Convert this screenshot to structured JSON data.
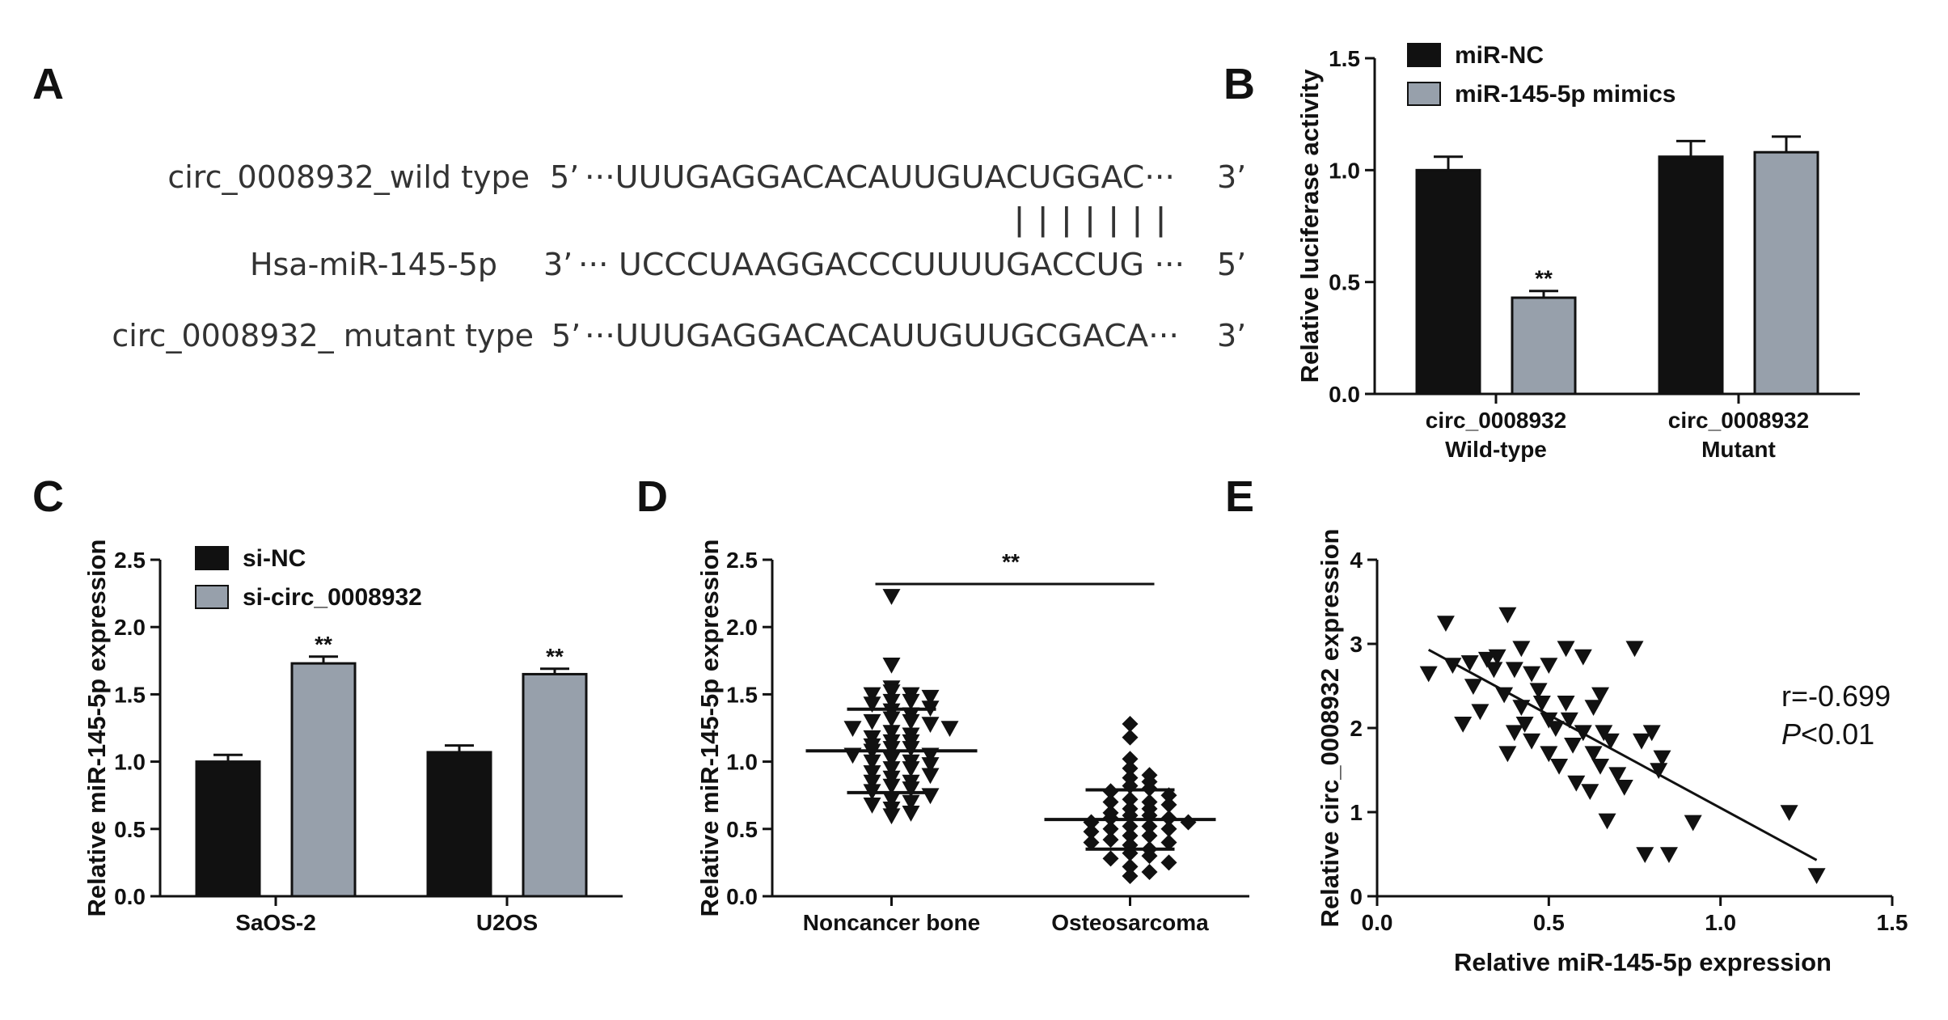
{
  "panels": {
    "A": {
      "letter": "A",
      "rows": [
        {
          "label": "circ_0008932_wild type",
          "end5": "5’",
          "sequence": "···UUUGAGGACACAUUGUACUGGAC···",
          "end3": "3’"
        },
        {
          "label": "Hsa-miR-145-5p",
          "end5": "3’",
          "sequence": "··· UCCCUAAGGACCCUUUUGACCUG ···",
          "end3": "5’"
        },
        {
          "label": "circ_0008932_ mutant type",
          "end5": "5’",
          "sequence": "···UUUGAGGACACAUUGUUGCGACA···",
          "end3": "3’"
        }
      ],
      "pairing": "|  |  |  |  |  |  |"
    },
    "B": {
      "letter": "B"
    },
    "C": {
      "letter": "C"
    },
    "D": {
      "letter": "D"
    },
    "E": {
      "letter": "E",
      "r_text": "r=-0.699",
      "p_letter": "P",
      "p_rest": "<0.01"
    }
  },
  "colors": {
    "black_bar": "#111111",
    "grey_bar": "#97a0ab",
    "axis": "#111111"
  },
  "chart_data": [
    {
      "panel": "B",
      "type": "bar",
      "categories": [
        "circ_0008932\nWild-type",
        "circ_0008932\nMutant"
      ],
      "series": [
        {
          "name": "miR-NC",
          "values": [
            1.0,
            1.06
          ],
          "errors": [
            0.06,
            0.07
          ],
          "color": "#111111"
        },
        {
          "name": "miR-145-5p mimics",
          "values": [
            0.43,
            1.08
          ],
          "errors": [
            0.03,
            0.07
          ],
          "color": "#97a0ab"
        }
      ],
      "significance": [
        {
          "category": 0,
          "series": 1,
          "label": "**"
        }
      ],
      "xlabel": "",
      "ylabel": "Relative luciferase activity",
      "ylim": [
        0,
        1.5
      ],
      "yticks": [
        "0.0",
        "0.5",
        "1.0",
        "1.5"
      ],
      "legend": "top-left"
    },
    {
      "panel": "C",
      "type": "bar",
      "categories": [
        "SaOS-2",
        "U2OS"
      ],
      "series": [
        {
          "name": "si-NC",
          "values": [
            1.0,
            1.07
          ],
          "errors": [
            0.05,
            0.05
          ],
          "color": "#111111"
        },
        {
          "name": "si-circ_0008932",
          "values": [
            1.73,
            1.65
          ],
          "errors": [
            0.05,
            0.04
          ],
          "color": "#97a0ab"
        }
      ],
      "significance": [
        {
          "category": 0,
          "series": 1,
          "label": "**"
        },
        {
          "category": 1,
          "series": 1,
          "label": "**"
        }
      ],
      "xlabel": "",
      "ylabel": "Relative miR-145-5p expression",
      "ylim": [
        0,
        2.5
      ],
      "yticks": [
        "0.0",
        "0.5",
        "1.0",
        "1.5",
        "2.0",
        "2.5"
      ],
      "legend": "top-left"
    },
    {
      "panel": "D",
      "type": "scatter",
      "categories": [
        "Noncancer bone",
        "Osteosarcoma"
      ],
      "groups": [
        {
          "name": "Noncancer bone",
          "marker": "triangle-down",
          "mean": 1.08,
          "sd": 0.31,
          "values": [
            2.23,
            1.72,
            1.55,
            1.52,
            1.5,
            1.5,
            1.48,
            1.45,
            1.45,
            1.43,
            1.4,
            1.38,
            1.35,
            1.32,
            1.3,
            1.3,
            1.28,
            1.25,
            1.25,
            1.22,
            1.2,
            1.18,
            1.15,
            1.15,
            1.12,
            1.1,
            1.1,
            1.08,
            1.05,
            1.05,
            1.02,
            1.0,
            1.0,
            0.98,
            0.95,
            0.95,
            0.92,
            0.9,
            0.88,
            0.85,
            0.85,
            0.82,
            0.8,
            0.78,
            0.75,
            0.72,
            0.7,
            0.68,
            0.65,
            0.62,
            0.6
          ]
        },
        {
          "name": "Osteosarcoma",
          "marker": "diamond",
          "mean": 0.57,
          "sd": 0.22,
          "values": [
            1.28,
            1.18,
            1.02,
            0.95,
            0.9,
            0.88,
            0.85,
            0.82,
            0.8,
            0.78,
            0.75,
            0.72,
            0.7,
            0.7,
            0.68,
            0.65,
            0.65,
            0.62,
            0.6,
            0.6,
            0.58,
            0.58,
            0.55,
            0.55,
            0.52,
            0.52,
            0.5,
            0.5,
            0.48,
            0.45,
            0.45,
            0.42,
            0.4,
            0.4,
            0.38,
            0.35,
            0.32,
            0.3,
            0.28,
            0.25,
            0.22,
            0.18,
            0.15
          ]
        }
      ],
      "significance": [
        {
          "label": "**"
        }
      ],
      "xlabel": "",
      "ylabel": "Relative miR-145-5p expression",
      "ylim": [
        0,
        2.5
      ],
      "yticks": [
        "0.0",
        "0.5",
        "1.0",
        "1.5",
        "2.0",
        "2.5"
      ]
    },
    {
      "panel": "E",
      "type": "scatter",
      "marker": "triangle-down",
      "points": [
        [
          0.15,
          2.65
        ],
        [
          0.2,
          3.25
        ],
        [
          0.22,
          2.75
        ],
        [
          0.25,
          2.05
        ],
        [
          0.27,
          2.78
        ],
        [
          0.28,
          2.5
        ],
        [
          0.3,
          2.2
        ],
        [
          0.32,
          2.82
        ],
        [
          0.34,
          2.7
        ],
        [
          0.35,
          2.85
        ],
        [
          0.37,
          2.4
        ],
        [
          0.38,
          3.35
        ],
        [
          0.38,
          1.7
        ],
        [
          0.4,
          2.7
        ],
        [
          0.4,
          1.95
        ],
        [
          0.42,
          2.25
        ],
        [
          0.42,
          2.95
        ],
        [
          0.43,
          2.05
        ],
        [
          0.45,
          2.65
        ],
        [
          0.45,
          1.85
        ],
        [
          0.47,
          2.45
        ],
        [
          0.48,
          2.3
        ],
        [
          0.5,
          2.75
        ],
        [
          0.5,
          2.1
        ],
        [
          0.5,
          1.7
        ],
        [
          0.52,
          2.0
        ],
        [
          0.53,
          1.55
        ],
        [
          0.55,
          2.95
        ],
        [
          0.55,
          2.3
        ],
        [
          0.56,
          2.1
        ],
        [
          0.57,
          1.8
        ],
        [
          0.58,
          1.35
        ],
        [
          0.6,
          2.85
        ],
        [
          0.6,
          1.95
        ],
        [
          0.62,
          1.25
        ],
        [
          0.63,
          2.25
        ],
        [
          0.63,
          1.7
        ],
        [
          0.65,
          2.4
        ],
        [
          0.65,
          1.55
        ],
        [
          0.66,
          1.95
        ],
        [
          0.67,
          0.9
        ],
        [
          0.68,
          1.85
        ],
        [
          0.7,
          1.45
        ],
        [
          0.72,
          1.3
        ],
        [
          0.75,
          2.95
        ],
        [
          0.77,
          1.85
        ],
        [
          0.78,
          0.5
        ],
        [
          0.8,
          1.95
        ],
        [
          0.82,
          1.5
        ],
        [
          0.83,
          1.65
        ],
        [
          0.85,
          0.5
        ],
        [
          0.92,
          0.88
        ],
        [
          1.2,
          1.0
        ],
        [
          1.28,
          0.25
        ]
      ],
      "fit": {
        "x": [
          0.15,
          1.28
        ],
        "y": [
          2.93,
          0.43
        ]
      },
      "xlabel": "Relative miR-145-5p expression",
      "ylabel": "Relative circ_0008932 expression",
      "xlim": [
        0,
        1.5
      ],
      "ylim": [
        0,
        4
      ],
      "xticks": [
        "0.0",
        "0.5",
        "1.0",
        "1.5"
      ],
      "yticks": [
        "0",
        "1",
        "2",
        "3",
        "4"
      ]
    }
  ]
}
